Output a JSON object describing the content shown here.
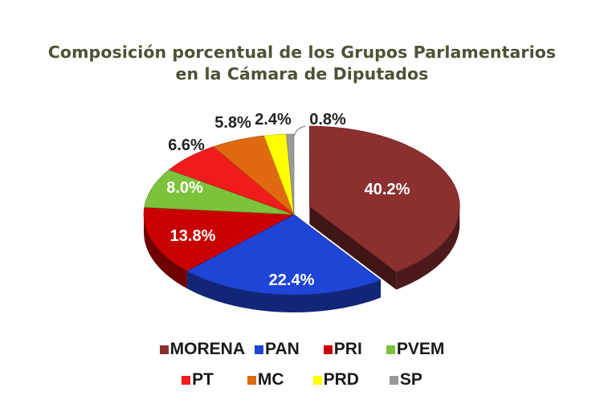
{
  "title": {
    "line1": "Composición porcentual de los Grupos Parlamentarios",
    "line2": "en la Cámara de Diputados"
  },
  "chart_data": {
    "type": "pie",
    "title": "Composición porcentual de los Grupos Parlamentarios en la Cámara de Diputados",
    "categories": [
      "MORENA",
      "PAN",
      "PRI",
      "PVEM",
      "PT",
      "MC",
      "PRD",
      "SP"
    ],
    "values": [
      40.2,
      22.4,
      13.8,
      8.0,
      6.6,
      5.8,
      2.4,
      0.8
    ],
    "labels": [
      "40.2%",
      "22.4%",
      "13.8%",
      "8.0%",
      "6.6%",
      "5.8%",
      "2.4%",
      "0.8%"
    ],
    "colors": [
      "#8b2f2f",
      "#1f45d6",
      "#c80000",
      "#7cc23a",
      "#f01c1c",
      "#e06a10",
      "#ffff00",
      "#9a9a9a"
    ],
    "style": "3d-exploded",
    "exploded": [
      "MORENA"
    ],
    "legend_position": "bottom"
  },
  "legend": {
    "row1": [
      {
        "label": "MORENA",
        "color": "#8b2f2f"
      },
      {
        "label": "PAN",
        "color": "#1f45d6"
      },
      {
        "label": "PRI",
        "color": "#c80000"
      },
      {
        "label": "PVEM",
        "color": "#7cc23a"
      }
    ],
    "row2": [
      {
        "label": "PT",
        "color": "#f01c1c"
      },
      {
        "label": "MC",
        "color": "#e06a10"
      },
      {
        "label": "PRD",
        "color": "#ffff00"
      },
      {
        "label": "SP",
        "color": "#9a9a9a"
      }
    ]
  }
}
